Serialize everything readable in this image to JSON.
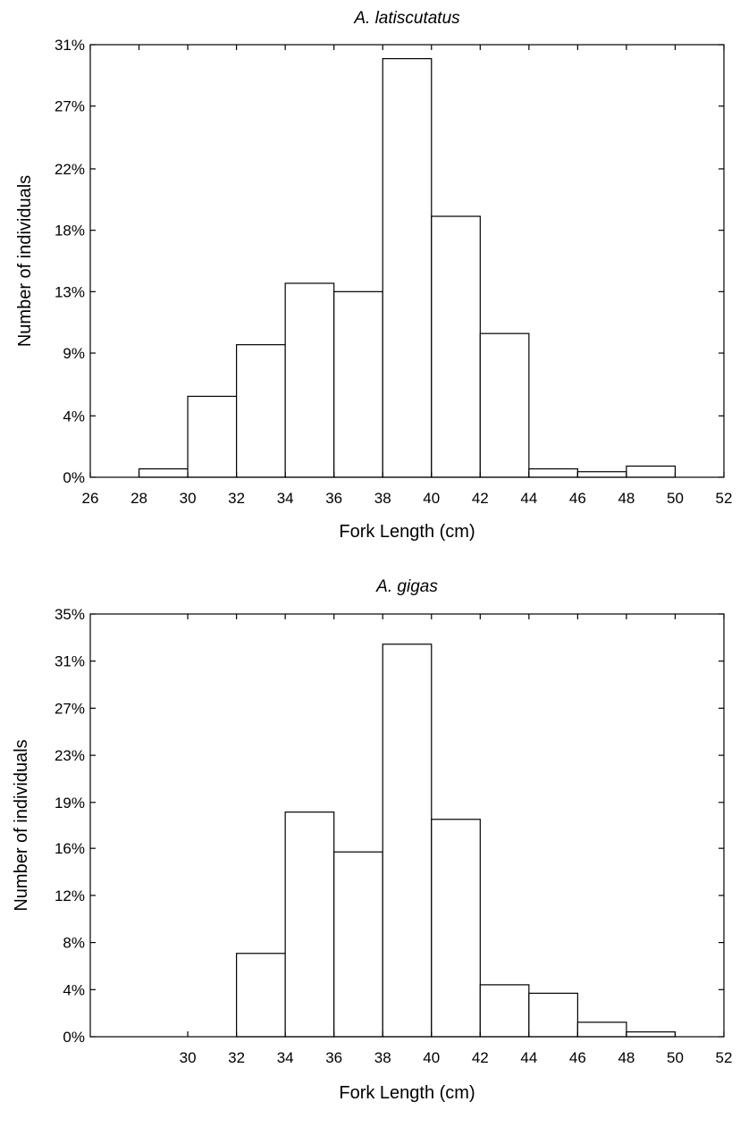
{
  "chart_data": [
    {
      "type": "bar",
      "title": "A. latiscutatus",
      "xlabel": "Fork Length (cm)",
      "ylabel": "Number of individuals",
      "xlim": [
        26,
        52
      ],
      "x_ticks": [
        26,
        28,
        30,
        32,
        34,
        36,
        38,
        40,
        42,
        44,
        46,
        48,
        50,
        52
      ],
      "ylim": [
        0,
        31
      ],
      "y_ticks": [
        0,
        4.4,
        8.9,
        13.3,
        17.7,
        22.1,
        26.6,
        31
      ],
      "y_tick_labels": [
        "0%",
        "4%",
        "9%",
        "13%",
        "18%",
        "22%",
        "27%",
        "31%"
      ],
      "bin_edges": [
        28,
        30,
        32,
        34,
        36,
        38,
        40,
        42,
        44,
        46,
        48,
        50
      ],
      "values": [
        0.6,
        5.8,
        9.5,
        13.9,
        13.3,
        30.0,
        18.7,
        10.3,
        0.6,
        0.4,
        0.8
      ],
      "grid": false
    },
    {
      "type": "bar",
      "title": "A. gigas",
      "xlabel": "Fork Length (cm)",
      "ylabel": "Number of individuals",
      "xlim": [
        26,
        52
      ],
      "x_ticks": [
        30,
        32,
        34,
        36,
        38,
        40,
        42,
        44,
        46,
        48,
        50,
        52
      ],
      "ylim": [
        0,
        35
      ],
      "y_ticks": [
        0,
        3.9,
        7.8,
        11.7,
        15.6,
        19.4,
        23.3,
        27.2,
        31.1,
        35
      ],
      "y_tick_labels": [
        "0%",
        "4%",
        "8%",
        "12%",
        "16%",
        "19%",
        "23%",
        "27%",
        "31%",
        "35%"
      ],
      "bin_edges": [
        32,
        34,
        36,
        38,
        40,
        42,
        44,
        46,
        48,
        50
      ],
      "values": [
        6.9,
        18.6,
        15.3,
        32.5,
        18.0,
        4.3,
        3.6,
        1.2,
        0.4
      ],
      "grid": false
    }
  ]
}
